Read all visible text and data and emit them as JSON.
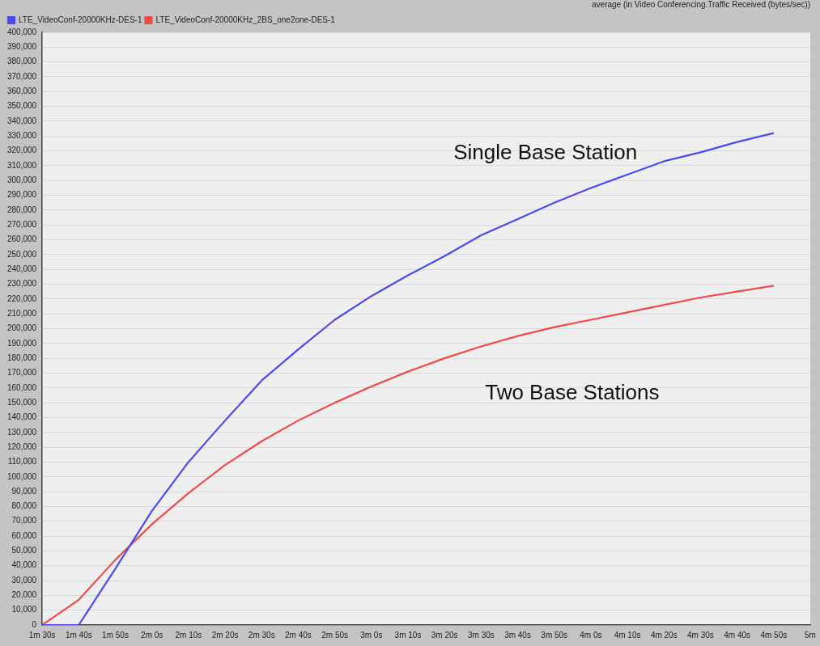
{
  "chart_data": {
    "type": "line",
    "title": "average (in Video Conferencing.Traffic Received (bytes/sec))",
    "legend": "top left",
    "grid": "y",
    "marker": "none",
    "line_style": "solid",
    "categories": [
      "1m 30s",
      "1m 40s",
      "1m 50s",
      "2m 0s",
      "2m 10s",
      "2m 20s",
      "2m 30s",
      "2m 40s",
      "2m 50s",
      "3m 0s",
      "3m 10s",
      "3m 20s",
      "3m 30s",
      "3m 40s",
      "3m 50s",
      "4m 0s",
      "4m 10s",
      "4m 20s",
      "4m 30s",
      "4m 40s",
      "4m 50s",
      "5m"
    ],
    "ylim": [
      0,
      400000
    ],
    "yticks": [
      0,
      {
        "value": 10000,
        "label": "10,000"
      },
      {
        "value": 20000,
        "label": "20,000"
      },
      {
        "value": 30000,
        "label": "30,000"
      },
      {
        "value": 40000,
        "label": "40,000"
      },
      {
        "value": 50000,
        "label": "50,000"
      },
      {
        "value": 60000,
        "label": "60,000"
      },
      {
        "value": 70000,
        "label": "70,000"
      },
      {
        "value": 80000,
        "label": "80,000"
      },
      {
        "value": 90000,
        "label": "90,000"
      },
      {
        "value": 100000,
        "label": "100,000"
      },
      {
        "value": 110000,
        "label": "110,000"
      },
      {
        "value": 120000,
        "label": "120,000"
      },
      {
        "value": 130000,
        "label": "130,000"
      },
      {
        "value": 140000,
        "label": "140,000"
      },
      {
        "value": 150000,
        "label": "150,000"
      },
      {
        "value": 160000,
        "label": "160,000"
      },
      {
        "value": 170000,
        "label": "170,000"
      },
      {
        "value": 180000,
        "label": "180,000"
      },
      {
        "value": 190000,
        "label": "190,000"
      },
      {
        "value": 200000,
        "label": "200,000"
      },
      {
        "value": 210000,
        "label": "210,000"
      },
      {
        "value": 220000,
        "label": "220,000"
      },
      {
        "value": 230000,
        "label": "230,000"
      },
      {
        "value": 240000,
        "label": "240,000"
      },
      {
        "value": 250000,
        "label": "250,000"
      },
      {
        "value": 260000,
        "label": "260,000"
      },
      {
        "value": 270000,
        "label": "270,000"
      },
      {
        "value": 280000,
        "label": "280,000"
      },
      {
        "value": 290000,
        "label": "290,000"
      },
      {
        "value": 300000,
        "label": "300,000"
      },
      {
        "value": 310000,
        "label": "310,000"
      },
      {
        "value": 320000,
        "label": "320,000"
      },
      {
        "value": 330000,
        "label": "330,000"
      },
      {
        "value": 340000,
        "label": "340,000"
      },
      {
        "value": 350000,
        "label": "350,000"
      },
      {
        "value": 360000,
        "label": "360,000"
      },
      {
        "value": 370000,
        "label": "370,000"
      },
      {
        "value": 380000,
        "label": "380,000"
      },
      {
        "value": 390000,
        "label": "390,000"
      },
      {
        "value": 400000,
        "label": "400,000"
      }
    ],
    "series": [
      {
        "name": "LTE_VideoConf-20000KHz-DES-1",
        "color": "#4b4bf0",
        "values": [
          0,
          0,
          38000,
          77000,
          110000,
          138000,
          165000,
          186000,
          206000,
          222000,
          236000,
          249000,
          263000,
          274000,
          285000,
          295000,
          304000,
          313000,
          319000,
          326000,
          332000,
          null
        ]
      },
      {
        "name": "LTE_VideoConf-20000KHz_2BS_one2one-DES-1",
        "color": "#f04b4b",
        "values": [
          0,
          17000,
          44000,
          68000,
          89000,
          108000,
          124000,
          138000,
          150000,
          161000,
          171000,
          180000,
          188000,
          195000,
          201000,
          206000,
          211000,
          216000,
          221000,
          225000,
          229000,
          null
        ]
      }
    ],
    "annotations": [
      "Single Base Station",
      "Two Base Stations"
    ]
  }
}
